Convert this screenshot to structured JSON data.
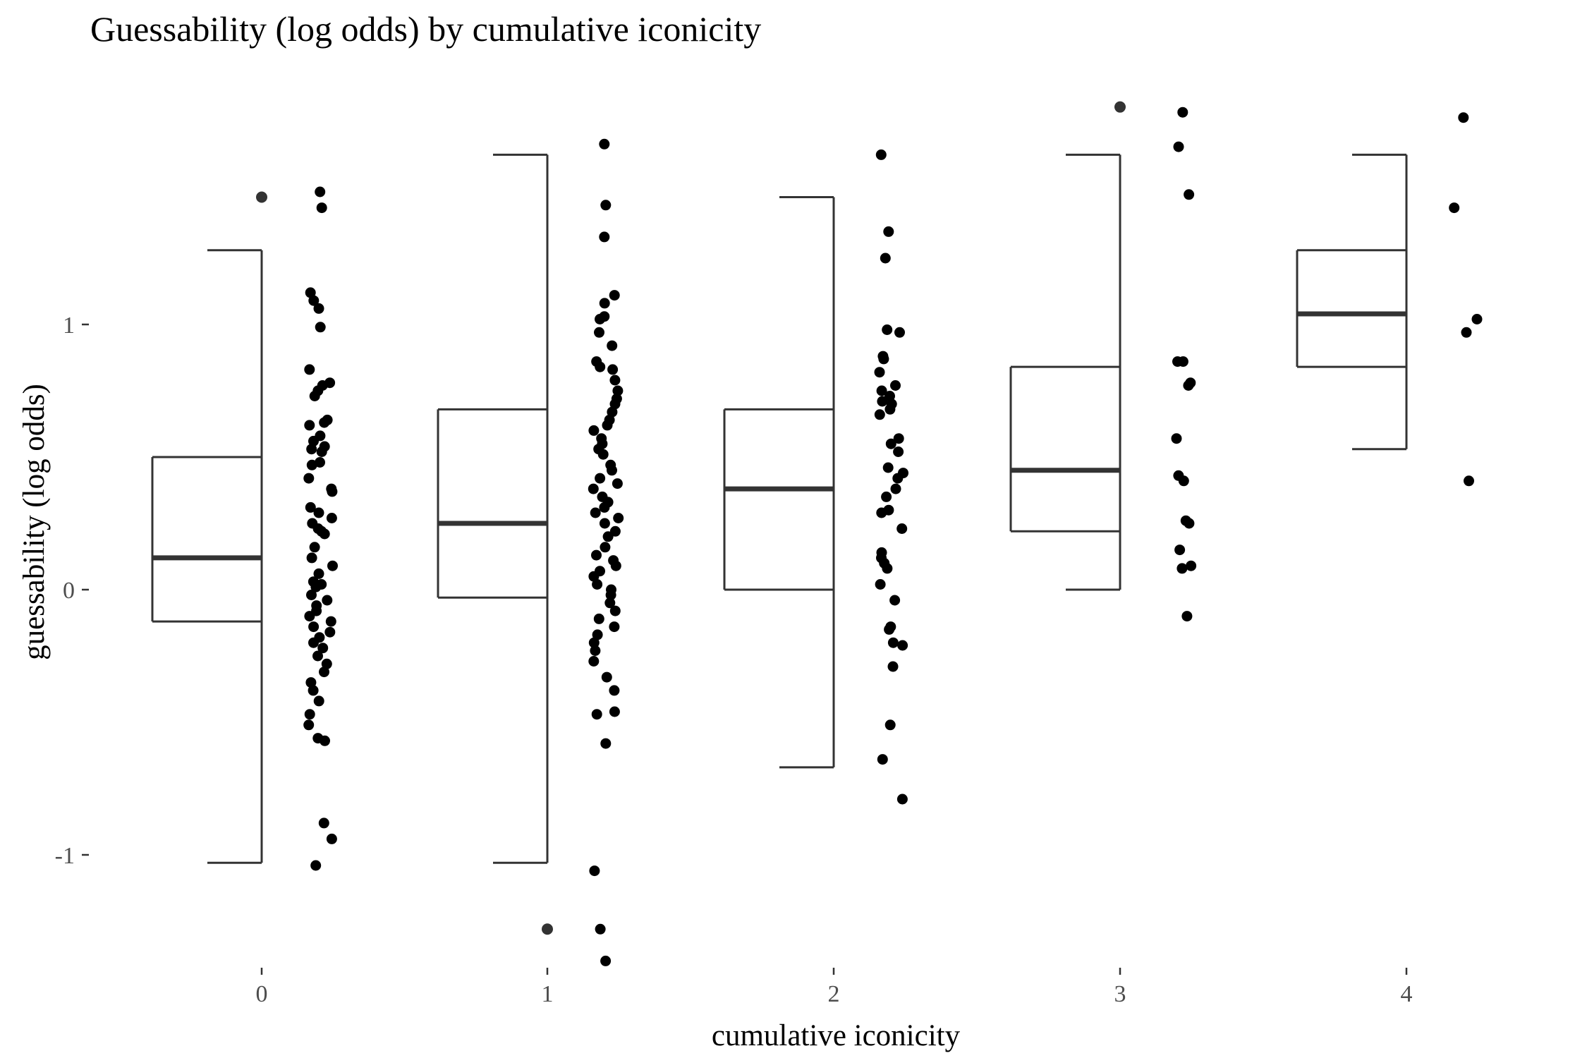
{
  "chart_data": {
    "type": "box",
    "title": "Guessability (log odds) by cumulative iconicity",
    "xlabel": "cumulative iconicity",
    "ylabel": "guessability (log odds)",
    "categories": [
      "0",
      "1",
      "2",
      "3",
      "4"
    ],
    "y_ticks": [
      -1,
      0,
      1
    ],
    "y_tick_labels": [
      "-1",
      "0",
      "1"
    ],
    "ylim": [
      -1.45,
      1.85
    ],
    "grid": false,
    "boxes": [
      {
        "category": "0",
        "lower_whisker": -1.03,
        "q1": -0.12,
        "median": 0.12,
        "q3": 0.5,
        "upper_whisker": 1.28,
        "outliers": [
          1.48
        ]
      },
      {
        "category": "1",
        "lower_whisker": -1.03,
        "q1": -0.03,
        "median": 0.25,
        "q3": 0.68,
        "upper_whisker": 1.64,
        "outliers": [
          -1.28
        ]
      },
      {
        "category": "2",
        "lower_whisker": -0.67,
        "q1": 0.0,
        "median": 0.38,
        "q3": 0.68,
        "upper_whisker": 1.48,
        "outliers": []
      },
      {
        "category": "3",
        "lower_whisker": 0.0,
        "q1": 0.22,
        "median": 0.45,
        "q3": 0.84,
        "upper_whisker": 1.64,
        "outliers": [
          1.82
        ]
      },
      {
        "category": "4",
        "lower_whisker": 0.53,
        "q1": 0.84,
        "median": 1.04,
        "q3": 1.28,
        "upper_whisker": 1.64,
        "outliers": []
      }
    ],
    "points": [
      {
        "category": "0",
        "values": [
          1.5,
          1.44,
          1.12,
          1.09,
          1.06,
          0.99,
          0.83,
          0.78,
          0.77,
          0.75,
          0.73,
          0.64,
          0.63,
          0.62,
          0.58,
          0.56,
          0.54,
          0.53,
          0.52,
          0.48,
          0.47,
          0.42,
          0.38,
          0.37,
          0.31,
          0.29,
          0.27,
          0.25,
          0.23,
          0.22,
          0.21,
          0.16,
          0.12,
          0.09,
          0.06,
          0.03,
          0.02,
          0.01,
          -0.02,
          -0.04,
          -0.06,
          -0.08,
          -0.1,
          -0.12,
          -0.14,
          -0.16,
          -0.18,
          -0.2,
          -0.22,
          -0.25,
          -0.28,
          -0.31,
          -0.35,
          -0.38,
          -0.42,
          -0.47,
          -0.51,
          -0.56,
          -0.57,
          -0.88,
          -0.94,
          -1.04
        ]
      },
      {
        "category": "1",
        "values": [
          1.68,
          1.45,
          1.33,
          1.11,
          1.08,
          1.03,
          1.02,
          0.97,
          0.92,
          0.86,
          0.84,
          0.83,
          0.79,
          0.75,
          0.72,
          0.7,
          0.67,
          0.64,
          0.62,
          0.6,
          0.57,
          0.55,
          0.53,
          0.51,
          0.47,
          0.45,
          0.42,
          0.4,
          0.38,
          0.35,
          0.33,
          0.31,
          0.29,
          0.27,
          0.25,
          0.22,
          0.2,
          0.16,
          0.13,
          0.11,
          0.09,
          0.07,
          0.05,
          0.02,
          0.0,
          -0.02,
          -0.05,
          -0.08,
          -0.11,
          -0.14,
          -0.17,
          -0.2,
          -0.23,
          -0.27,
          -0.33,
          -0.38,
          -0.46,
          -0.47,
          -0.58,
          -1.06,
          -1.28,
          -1.4
        ]
      },
      {
        "category": "2",
        "values": [
          1.64,
          1.35,
          1.25,
          0.98,
          0.97,
          0.88,
          0.87,
          0.82,
          0.77,
          0.75,
          0.73,
          0.71,
          0.7,
          0.68,
          0.66,
          0.57,
          0.55,
          0.52,
          0.46,
          0.44,
          0.42,
          0.38,
          0.35,
          0.3,
          0.29,
          0.23,
          0.14,
          0.12,
          0.1,
          0.08,
          0.02,
          -0.04,
          -0.14,
          -0.15,
          -0.2,
          -0.21,
          -0.29,
          -0.51,
          -0.64,
          -0.79
        ]
      },
      {
        "category": "3",
        "values": [
          1.8,
          1.67,
          1.49,
          0.86,
          0.86,
          0.78,
          0.77,
          0.57,
          0.43,
          0.41,
          0.26,
          0.25,
          0.15,
          0.09,
          0.08,
          -0.1
        ]
      },
      {
        "category": "4",
        "values": [
          1.78,
          1.44,
          1.02,
          0.97,
          0.41
        ]
      }
    ]
  }
}
